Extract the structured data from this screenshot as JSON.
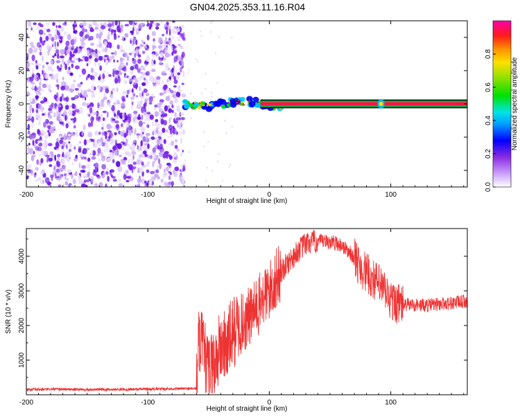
{
  "title": "GN04.2025.353.11.16.R04",
  "colors": {
    "snr_line": "#ee3333",
    "band": "#ff0055",
    "noise_dark": "#7a22ee",
    "noise_light": "#c9a8f5",
    "noise_pale": "#e9dcfb"
  },
  "chart_data": [
    {
      "type": "heatmap",
      "panel": "spectrogram",
      "xlabel": "Height of straight line (km)",
      "ylabel": "Frequency (Hz)",
      "xlim": [
        -200,
        163
      ],
      "ylim": [
        -50,
        50
      ],
      "xticks": [
        "-200",
        "-100",
        "0",
        "100"
      ],
      "xtick_values": [
        -200,
        -100,
        0,
        100
      ],
      "yticks": [
        "-40",
        "-20",
        "0",
        "20",
        "40"
      ],
      "ytick_values": [
        -40,
        -20,
        0,
        20,
        40
      ],
      "noise_region_x": [
        -200,
        -70
      ],
      "signal_band_start_x": -70,
      "signal_center_freq_hz": 0,
      "signal_band_halfwidth_hz": 2,
      "colorbar": {
        "label": "Normalized spectral amplitude",
        "range": [
          0,
          1
        ],
        "ticks": [
          "0.0",
          "0.2",
          "0.4",
          "0.6",
          "0.8"
        ],
        "tick_values": [
          0.0,
          0.2,
          0.4,
          0.6,
          0.8
        ]
      }
    },
    {
      "type": "line",
      "panel": "snr",
      "xlabel": "Height of straight line (km)",
      "ylabel": "SNR (10 * v/v)",
      "xlim": [
        -200,
        163
      ],
      "ylim": [
        0,
        4800
      ],
      "xticks": [
        "-200",
        "-100",
        "0",
        "100"
      ],
      "xtick_values": [
        -200,
        -100,
        0,
        100
      ],
      "yticks": [
        "1000",
        "2000",
        "3000",
        "4000"
      ],
      "ytick_values": [
        1000,
        2000,
        3000,
        4000
      ],
      "series": [
        {
          "name": "SNR",
          "x": [
            -200,
            -170,
            -140,
            -110,
            -80,
            -60,
            -58,
            -55,
            -50,
            -45,
            -40,
            -35,
            -30,
            -25,
            -20,
            -15,
            -10,
            -5,
            0,
            5,
            10,
            15,
            20,
            25,
            30,
            35,
            40,
            45,
            50,
            55,
            60,
            65,
            70,
            75,
            80,
            85,
            90,
            95,
            100,
            105,
            110,
            120,
            130,
            140,
            150,
            163
          ],
          "values": [
            150,
            160,
            150,
            160,
            170,
            180,
            1500,
            1300,
            700,
            900,
            1400,
            1400,
            1800,
            2000,
            2100,
            2300,
            2500,
            2800,
            3000,
            3300,
            3550,
            3800,
            4000,
            4200,
            4350,
            4400,
            4420,
            4420,
            4410,
            4380,
            4300,
            4150,
            3950,
            3700,
            3500,
            3350,
            3200,
            3000,
            2700,
            2650,
            2600,
            2600,
            2580,
            2620,
            2650,
            2700
          ]
        }
      ]
    }
  ]
}
